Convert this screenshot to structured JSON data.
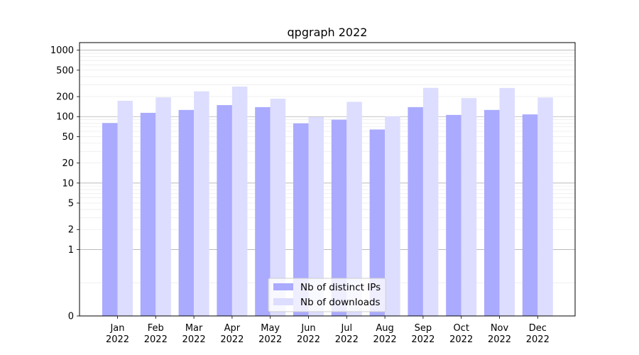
{
  "chart_data": {
    "type": "bar",
    "title": "qpgraph 2022",
    "xlabel": "",
    "ylabel": "",
    "categories": [
      "Jan\n2022",
      "Feb\n2022",
      "Mar\n2022",
      "Apr\n2022",
      "May\n2022",
      "Jun\n2022",
      "Jul\n2022",
      "Aug\n2022",
      "Sep\n2022",
      "Oct\n2022",
      "Nov\n2022",
      "Dec\n2022"
    ],
    "series": [
      {
        "name": "Nb of distinct IPs",
        "color": "#aaaaff",
        "values": [
          80,
          114,
          126,
          149,
          139,
          79,
          90,
          64,
          139,
          106,
          126,
          108
        ]
      },
      {
        "name": "Nb of downloads",
        "color": "#ddddff",
        "values": [
          173,
          195,
          240,
          283,
          186,
          99,
          167,
          101,
          271,
          190,
          270,
          194
        ]
      }
    ],
    "yscale": "symlog",
    "ylim": [
      0,
      1300
    ],
    "yticks": [
      0,
      1,
      2,
      5,
      10,
      20,
      50,
      100,
      200,
      500,
      1000
    ],
    "ytick_labels": [
      "0",
      "1",
      "2",
      "5",
      "10",
      "20",
      "50",
      "100",
      "200",
      "500",
      "1000"
    ],
    "grid": true,
    "legend_position": "bottom-center"
  }
}
